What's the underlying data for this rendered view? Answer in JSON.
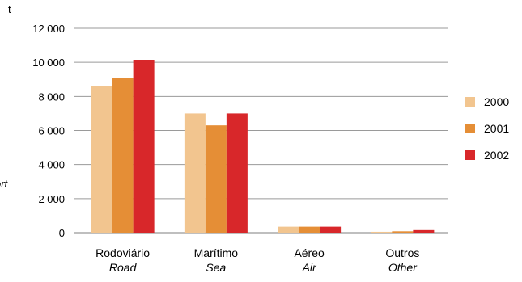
{
  "chart_data": {
    "type": "bar",
    "y_unit": "t",
    "side_label_fragment": "ort",
    "categories": [
      {
        "pt": "Rodoviário",
        "en": "Road"
      },
      {
        "pt": "Marítimo",
        "en": "Sea"
      },
      {
        "pt": "Aéreo",
        "en": "Air"
      },
      {
        "pt": "Outros",
        "en": "Other"
      }
    ],
    "series": [
      {
        "name": "2000",
        "color": "#f2c58f",
        "values": [
          8600,
          7000,
          350,
          50
        ]
      },
      {
        "name": "2001",
        "color": "#e58e36",
        "values": [
          9100,
          6300,
          350,
          80
        ]
      },
      {
        "name": "2002",
        "color": "#d8272a",
        "values": [
          10150,
          7000,
          350,
          150
        ]
      }
    ],
    "y_ticks": [
      "0",
      "2 000",
      "4 000",
      "6 000",
      "8 000",
      "10 000",
      "12 000"
    ],
    "ylim": [
      0,
      12000
    ],
    "grid": true,
    "legend_position": "right"
  }
}
